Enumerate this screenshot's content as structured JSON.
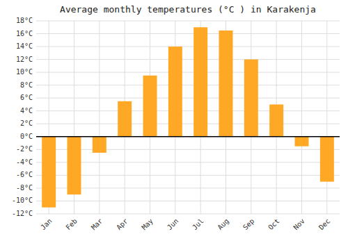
{
  "chart_data": {
    "type": "bar",
    "title": "Average monthly temperatures (°C ) in Karakenja",
    "categories": [
      "Jan",
      "Feb",
      "Mar",
      "Apr",
      "May",
      "Jun",
      "Jul",
      "Aug",
      "Sep",
      "Oct",
      "Nov",
      "Dec"
    ],
    "values": [
      -11,
      -9,
      -2.5,
      5.5,
      9.5,
      14,
      17,
      16.5,
      12,
      5,
      -1.5,
      -7
    ],
    "color": "#FFA826",
    "ylim": [
      -12,
      18
    ],
    "yticks": [
      {
        "value": -12,
        "label": "-12°C"
      },
      {
        "value": -10,
        "label": "-10°C"
      },
      {
        "value": -8,
        "label": "-8°C"
      },
      {
        "value": -6,
        "label": "-6°C"
      },
      {
        "value": -4,
        "label": "-4°C"
      },
      {
        "value": -2,
        "label": "-2°C"
      },
      {
        "value": 0,
        "label": "0°C"
      },
      {
        "value": 2,
        "label": "2°C"
      },
      {
        "value": 4,
        "label": "4°C"
      },
      {
        "value": 6,
        "label": "6°C"
      },
      {
        "value": 8,
        "label": "8°C"
      },
      {
        "value": 10,
        "label": "10°C"
      },
      {
        "value": 12,
        "label": "12°C"
      },
      {
        "value": 14,
        "label": "14°C"
      },
      {
        "value": 16,
        "label": "16°C"
      },
      {
        "value": 18,
        "label": "18°C"
      }
    ],
    "grid": true
  }
}
